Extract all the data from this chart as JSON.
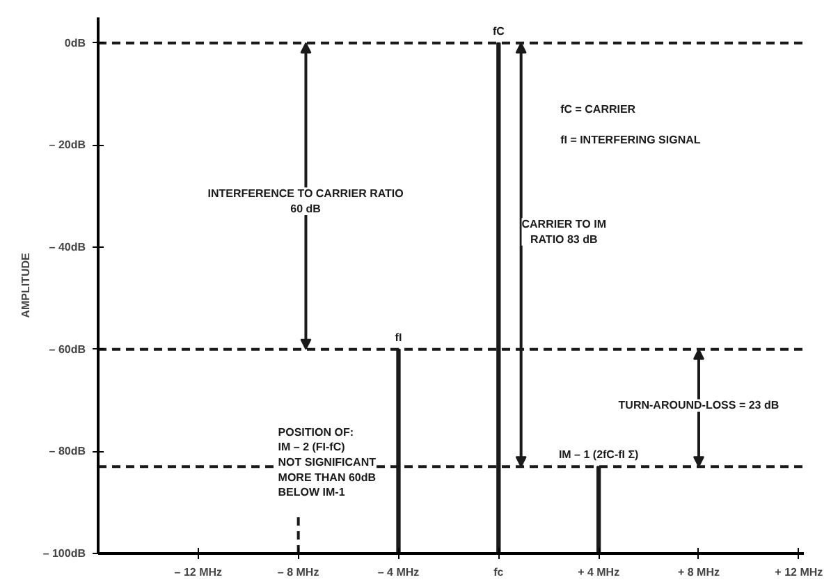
{
  "chart_data": {
    "type": "bar",
    "ylabel": "AMPLITUDE",
    "series": [
      {
        "x": [
          -4,
          0,
          4
        ],
        "base": [
          -100,
          -100,
          -100
        ],
        "values": [
          40,
          100,
          17
        ],
        "color": "#1a1a1a",
        "value_labels": [
          "fI",
          "fC",
          "IM – 1 (2fC-fI Σ)"
        ]
      },
      {
        "type": "line",
        "x": [
          -8,
          -8
        ],
        "values": [
          -100,
          -92
        ],
        "color": "#1a1a1a",
        "line_style": "dashed"
      }
    ],
    "xlim": [
      -16,
      12.2
    ],
    "ylim": [
      -100,
      5
    ],
    "xticks": [
      {
        "value": -12,
        "label": "– 12 MHz"
      },
      {
        "value": -8,
        "label": "– 8 MHz"
      },
      {
        "value": -4,
        "label": "– 4 MHz"
      },
      {
        "value": 0,
        "label": "fc"
      },
      {
        "value": 4,
        "label": "+ 4 MHz"
      },
      {
        "value": 8,
        "label": "+ 8 MHz"
      },
      {
        "value": 12,
        "label": "+ 12 MHz"
      }
    ],
    "yticks": [
      {
        "value": 0,
        "label": "0dB"
      },
      {
        "value": -20,
        "label": "– 20dB"
      },
      {
        "value": -40,
        "label": "– 40dB"
      },
      {
        "value": -60,
        "label": "– 60dB"
      },
      {
        "value": -80,
        "label": "– 80dB"
      },
      {
        "value": -100,
        "label": "– 100dB"
      }
    ],
    "ref_lines": [
      {
        "axis": "y",
        "value": 0,
        "line_style": "dashed"
      },
      {
        "axis": "y",
        "value": -60,
        "line_style": "dashed"
      },
      {
        "axis": "y",
        "value": -83,
        "line_style": "dashed"
      }
    ],
    "annotations": [
      {
        "text": "INTERFERENCE TO CARRIER RATIO\n60 dB",
        "x": -7.7,
        "y": -60
      },
      {
        "text": "CARRIER TO IM\nRATIO 83 dB",
        "x": 0.9,
        "y": -83
      },
      {
        "text": "TURN-AROUND-LOSS = 23 dB",
        "x": 8,
        "y": -83
      },
      "POSITION OF:\nIM – 2 (FI-fC)\nNOT SIGNIFICANT\nMORE THAN 60dB\nBELOW IM-1",
      "fC = CARRIER",
      "fI = INTERFERING SIGNAL"
    ],
    "grid": false
  }
}
